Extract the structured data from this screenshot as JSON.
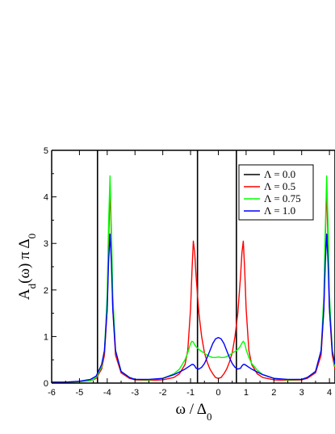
{
  "chart_data": {
    "type": "line",
    "title": "",
    "xlabel": "ω / Δ",
    "xlabel_sub": "0",
    "ylabel_parts": [
      "A",
      "d",
      "(ω) π Δ",
      "0"
    ],
    "xlim": [
      -6,
      4.2
    ],
    "ylim": [
      0,
      5
    ],
    "xticks": [
      -6,
      -5,
      -4,
      -3,
      -2,
      -1,
      0,
      1,
      2,
      3,
      4
    ],
    "yticks": [
      0,
      1,
      2,
      3,
      4,
      5
    ],
    "legend_position": "top-right",
    "series": [
      {
        "name": "Λ = 0.0",
        "color": "#000000",
        "style": "delta",
        "x": [
          -4.35,
          -0.75,
          0.65,
          4.2
        ],
        "y": [
          5,
          5,
          5,
          5
        ]
      },
      {
        "name": "Λ = 0.5",
        "color": "#ff0000",
        "x": [
          -6,
          -5.5,
          -5,
          -4.6,
          -4.4,
          -4.2,
          -4.1,
          -4.0,
          -3.95,
          -3.9,
          -3.85,
          -3.8,
          -3.7,
          -3.5,
          -3.2,
          -3,
          -2.5,
          -2,
          -1.6,
          -1.4,
          -1.2,
          -1.1,
          -1.0,
          -0.95,
          -0.9,
          -0.85,
          -0.8,
          -0.7,
          -0.6,
          -0.5,
          -0.4,
          -0.3,
          -0.2,
          -0.1,
          0,
          0.1,
          0.2,
          0.3,
          0.4,
          0.5,
          0.6,
          0.7,
          0.8,
          0.85,
          0.9,
          0.95,
          1.0,
          1.1,
          1.2,
          1.4,
          1.6,
          2,
          2.5,
          3,
          3.2,
          3.5,
          3.7,
          3.8,
          3.85,
          3.9,
          3.95,
          4.0,
          4.1,
          4.2
        ],
        "y": [
          0.02,
          0.02,
          0.03,
          0.05,
          0.1,
          0.3,
          0.6,
          1.6,
          3.0,
          4.25,
          3.1,
          1.6,
          0.6,
          0.22,
          0.1,
          0.07,
          0.06,
          0.07,
          0.12,
          0.2,
          0.4,
          0.7,
          1.6,
          2.4,
          3.05,
          2.8,
          2.3,
          1.5,
          1.0,
          0.65,
          0.45,
          0.3,
          0.2,
          0.12,
          0.1,
          0.12,
          0.2,
          0.3,
          0.45,
          0.65,
          1.0,
          1.5,
          2.3,
          2.8,
          3.05,
          2.4,
          1.6,
          0.7,
          0.4,
          0.2,
          0.12,
          0.07,
          0.06,
          0.07,
          0.1,
          0.22,
          0.6,
          1.6,
          3.1,
          4.25,
          3.0,
          1.6,
          0.6,
          0.3
        ]
      },
      {
        "name": "Λ = 0.75",
        "color": "#00ff00",
        "x": [
          -6,
          -5.5,
          -5,
          -4.6,
          -4.4,
          -4.2,
          -4.1,
          -4.0,
          -3.95,
          -3.9,
          -3.85,
          -3.8,
          -3.7,
          -3.5,
          -3.2,
          -3,
          -2.5,
          -2,
          -1.6,
          -1.4,
          -1.2,
          -1.1,
          -1.0,
          -0.95,
          -0.9,
          -0.85,
          -0.8,
          -0.7,
          -0.6,
          -0.5,
          -0.4,
          -0.3,
          -0.2,
          -0.1,
          0,
          0.1,
          0.2,
          0.3,
          0.4,
          0.5,
          0.6,
          0.7,
          0.8,
          0.85,
          0.9,
          0.95,
          1.0,
          1.1,
          1.2,
          1.4,
          1.6,
          2,
          2.5,
          3,
          3.2,
          3.5,
          3.7,
          3.8,
          3.85,
          3.9,
          3.95,
          4.0,
          4.1,
          4.2
        ],
        "y": [
          0.02,
          0.02,
          0.03,
          0.05,
          0.12,
          0.35,
          0.7,
          1.9,
          3.4,
          4.45,
          3.3,
          1.9,
          0.7,
          0.25,
          0.12,
          0.08,
          0.07,
          0.1,
          0.2,
          0.3,
          0.5,
          0.65,
          0.85,
          0.9,
          0.88,
          0.82,
          0.78,
          0.72,
          0.68,
          0.64,
          0.6,
          0.57,
          0.55,
          0.55,
          0.56,
          0.55,
          0.55,
          0.57,
          0.6,
          0.64,
          0.68,
          0.72,
          0.8,
          0.86,
          0.9,
          0.85,
          0.72,
          0.55,
          0.42,
          0.28,
          0.18,
          0.1,
          0.07,
          0.08,
          0.12,
          0.25,
          0.7,
          1.9,
          3.3,
          4.45,
          3.4,
          1.9,
          0.7,
          0.35
        ]
      },
      {
        "name": "Λ = 1.0",
        "color": "#0000ff",
        "x": [
          -6,
          -5.5,
          -5,
          -4.6,
          -4.4,
          -4.2,
          -4.1,
          -4.0,
          -3.95,
          -3.9,
          -3.85,
          -3.8,
          -3.7,
          -3.5,
          -3.2,
          -3,
          -2.5,
          -2,
          -1.6,
          -1.4,
          -1.2,
          -1.1,
          -1.0,
          -0.95,
          -0.9,
          -0.85,
          -0.8,
          -0.7,
          -0.6,
          -0.5,
          -0.4,
          -0.3,
          -0.2,
          -0.1,
          0,
          0.1,
          0.2,
          0.3,
          0.4,
          0.5,
          0.6,
          0.7,
          0.8,
          0.85,
          0.9,
          0.95,
          1.0,
          1.1,
          1.2,
          1.4,
          1.6,
          2,
          2.5,
          3,
          3.2,
          3.5,
          3.7,
          3.8,
          3.85,
          3.9,
          3.95,
          4.0,
          4.1,
          4.2
        ],
        "y": [
          0.02,
          0.02,
          0.04,
          0.08,
          0.15,
          0.4,
          0.7,
          1.6,
          2.6,
          3.2,
          2.6,
          1.6,
          0.7,
          0.25,
          0.12,
          0.08,
          0.08,
          0.1,
          0.18,
          0.24,
          0.3,
          0.34,
          0.38,
          0.4,
          0.4,
          0.37,
          0.32,
          0.3,
          0.34,
          0.42,
          0.55,
          0.7,
          0.85,
          0.95,
          0.98,
          0.95,
          0.85,
          0.7,
          0.55,
          0.42,
          0.34,
          0.3,
          0.32,
          0.37,
          0.4,
          0.4,
          0.38,
          0.34,
          0.3,
          0.24,
          0.18,
          0.1,
          0.08,
          0.08,
          0.12,
          0.25,
          0.7,
          1.6,
          2.6,
          3.2,
          2.6,
          1.6,
          0.7,
          0.4
        ]
      }
    ]
  }
}
